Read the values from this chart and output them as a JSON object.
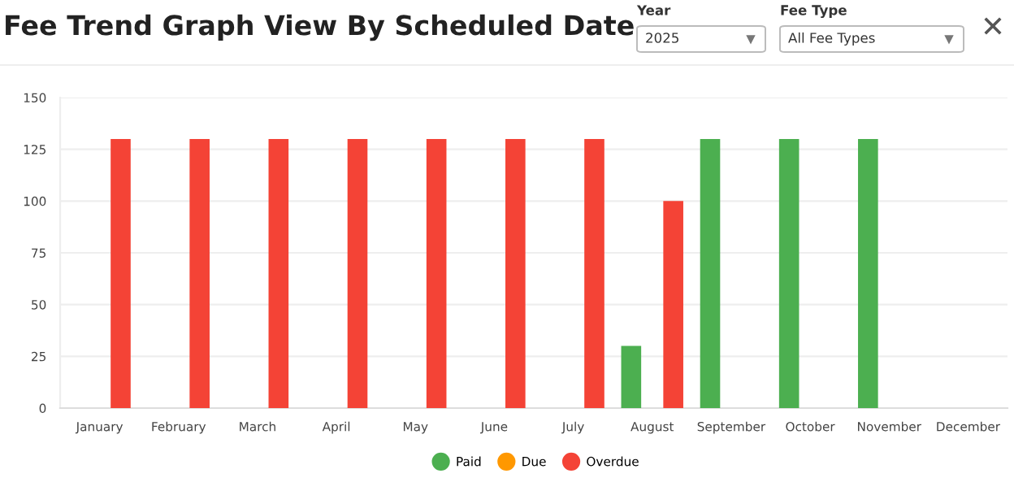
{
  "chart_data": {
    "type": "bar",
    "title": "Fee Trend Graph View By Scheduled Date",
    "categories": [
      "January",
      "February",
      "March",
      "April",
      "May",
      "June",
      "July",
      "August",
      "September",
      "October",
      "November",
      "December"
    ],
    "series": [
      {
        "name": "Paid",
        "color": "#4caf50",
        "values": [
          0,
          0,
          0,
          0,
          0,
          0,
          0,
          30,
          130,
          130,
          130,
          0
        ]
      },
      {
        "name": "Due",
        "color": "#ff9800",
        "values": [
          0,
          0,
          0,
          0,
          0,
          0,
          0,
          0,
          0,
          0,
          0,
          0
        ]
      },
      {
        "name": "Overdue",
        "color": "#f44336",
        "values": [
          130,
          130,
          130,
          130,
          130,
          130,
          130,
          100,
          0,
          0,
          0,
          0
        ]
      }
    ],
    "ylim": [
      0,
      150
    ],
    "yticks": [
      0,
      25,
      50,
      75,
      100,
      125,
      150
    ],
    "grid": "y",
    "legend": "bottom",
    "annotations": [
      "Year",
      "2025",
      "Fee Type",
      "All Fee Types"
    ]
  }
}
